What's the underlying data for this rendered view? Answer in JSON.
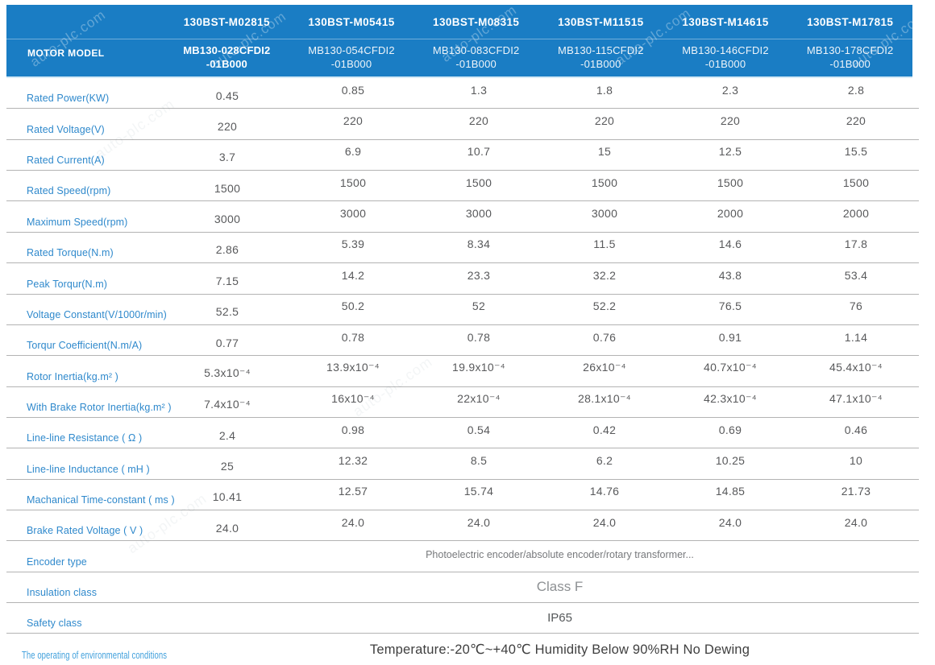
{
  "watermark": {
    "text": "auto-plc.com"
  },
  "colors": {
    "header_bg": "#1a7dc4",
    "header_divider": "#5ba3d6",
    "label_text": "#2f89cc",
    "value_text": "#58595b",
    "separator": "#b3b3b3"
  },
  "header": {
    "motor_model_label": "MOTOR MODEL",
    "models_row1": [
      "130BST-M02815",
      "130BST-M05415",
      "130BST-M08315",
      "130BST-M11515",
      "130BST-M14615",
      "130BST-M17815"
    ],
    "models_row2": [
      "MB130-028CFDI2\n-01B000",
      "MB130-054CFDI2\n-01B000",
      "MB130-083CFDI2\n-01B000",
      "MB130-115CFDI2\n-01B000",
      "MB130-146CFDI2\n-01B000",
      "MB130-178CFDI2\n-01B000"
    ]
  },
  "spec_rows": [
    {
      "label": "Rated Power(KW)",
      "values": [
        "0.45",
        "0.85",
        "1.3",
        "1.8",
        "2.3",
        "2.8"
      ]
    },
    {
      "label": "Rated Voltage(V)",
      "values": [
        "220",
        "220",
        "220",
        "220",
        "220",
        "220"
      ]
    },
    {
      "label": "Rated Current(A)",
      "values": [
        "3.7",
        "6.9",
        "10.7",
        "15",
        "12.5",
        "15.5"
      ]
    },
    {
      "label": "Rated Speed(rpm)",
      "values": [
        "1500",
        "1500",
        "1500",
        "1500",
        "1500",
        "1500"
      ]
    },
    {
      "label": "Maximum Speed(rpm)",
      "values": [
        "3000",
        "3000",
        "3000",
        "3000",
        "2000",
        "2000"
      ]
    },
    {
      "label": "Rated Torque(N.m)",
      "values": [
        "2.86",
        "5.39",
        "8.34",
        "11.5",
        "14.6",
        "17.8"
      ]
    },
    {
      "label": "Peak Torqur(N.m)",
      "values": [
        "7.15",
        "14.2",
        "23.3",
        "32.2",
        "43.8",
        "53.4"
      ]
    },
    {
      "label": "Voltage Constant(V/1000r/min)",
      "values": [
        "52.5",
        "50.2",
        "52",
        "52.2",
        "76.5",
        "76"
      ]
    },
    {
      "label": "Torqur Coefficient(N.m/A)",
      "values": [
        "0.77",
        "0.78",
        "0.78",
        "0.76",
        "0.91",
        "1.14"
      ]
    },
    {
      "label": "Rotor Inertia(kg.m² )",
      "values": [
        "5.3x10⁻⁴",
        "13.9x10⁻⁴",
        "19.9x10⁻⁴",
        "26x10⁻⁴",
        "40.7x10⁻⁴",
        "45.4x10⁻⁴"
      ]
    },
    {
      "label": "With Brake Rotor Inertia(kg.m² )",
      "values": [
        "7.4x10⁻⁴",
        "16x10⁻⁴",
        "22x10⁻⁴",
        "28.1x10⁻⁴",
        "42.3x10⁻⁴",
        "47.1x10⁻⁴"
      ]
    },
    {
      "label": "Line-line Resistance ( Ω )",
      "values": [
        "2.4",
        "0.98",
        "0.54",
        "0.42",
        "0.69",
        "0.46"
      ]
    },
    {
      "label": "Line-line Inductance ( mH )",
      "values": [
        "25",
        "12.32",
        "8.5",
        "6.2",
        "10.25",
        "10"
      ]
    },
    {
      "label": "Machanical Time-constant ( ms )",
      "values": [
        "10.41",
        "12.57",
        "15.74",
        "14.76",
        "14.85",
        "21.73"
      ]
    },
    {
      "label": "Brake Rated Voltage ( V )",
      "values": [
        "24.0",
        "24.0",
        "24.0",
        "24.0",
        "24.0",
        "24.0"
      ]
    }
  ],
  "merged_rows": [
    {
      "label": "Encoder type",
      "value": "Photoelectric encoder/absolute encoder/rotary transformer..."
    },
    {
      "label": "Insulation class",
      "value": "Class F"
    },
    {
      "label": "Safety class",
      "value": "IP65"
    },
    {
      "label": "The operating of environmental conditions",
      "value": "Temperature:-20℃~+40℃  Humidity Below 90%RH No Dewing"
    }
  ]
}
